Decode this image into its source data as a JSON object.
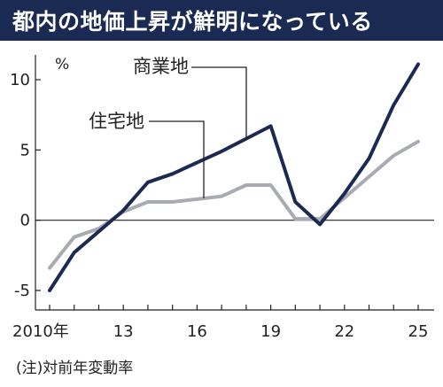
{
  "title": "都内の地価上昇が鮮明になっている",
  "note": "(注)対前年変動率",
  "chart_data": {
    "type": "line",
    "title": "都内の地価上昇が鮮明になっている",
    "xlabel": "",
    "ylabel": "%",
    "unit": "%",
    "x": [
      2010,
      2011,
      2012,
      2013,
      2014,
      2015,
      2016,
      2017,
      2018,
      2019,
      2020,
      2021,
      2022,
      2023,
      2024,
      2025
    ],
    "xlim": [
      2010,
      2025
    ],
    "ylim": [
      -6,
      12
    ],
    "xticks": [
      {
        "value": 2010,
        "label": "2010年"
      },
      {
        "value": 2013,
        "label": "13"
      },
      {
        "value": 2016,
        "label": "16"
      },
      {
        "value": 2019,
        "label": "19"
      },
      {
        "value": 2022,
        "label": "22"
      },
      {
        "value": 2025,
        "label": "25"
      }
    ],
    "yticks": [
      {
        "value": 10,
        "label": "10"
      },
      {
        "value": 5,
        "label": "5"
      },
      {
        "value": 0,
        "label": "0"
      },
      {
        "value": -5,
        "label": "-5"
      }
    ],
    "grid": false,
    "series": [
      {
        "name": "商業地",
        "color": "#1b2a52",
        "values": [
          -5.0,
          -2.3,
          -0.8,
          0.7,
          2.7,
          3.3,
          4.1,
          4.9,
          5.8,
          6.7,
          1.3,
          -0.3,
          1.9,
          4.4,
          8.2,
          11.1
        ],
        "label_at": 2018
      },
      {
        "name": "住宅地",
        "color": "#a9abb3",
        "values": [
          -3.4,
          -1.2,
          -0.6,
          0.6,
          1.3,
          1.3,
          1.5,
          1.7,
          2.5,
          2.5,
          0.1,
          0.1,
          1.6,
          3.1,
          4.6,
          5.6
        ],
        "label_at": 2016
      }
    ]
  }
}
